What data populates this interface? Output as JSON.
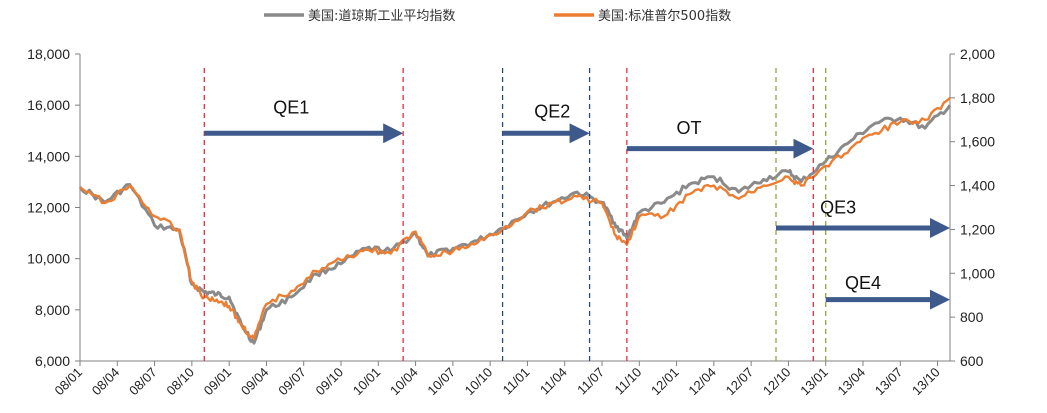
{
  "chart_data": {
    "type": "line",
    "legend": {
      "placement": "top-center"
    },
    "grid": false,
    "x_axis": {
      "ticks": [
        "08/01",
        "08/04",
        "08/07",
        "08/10",
        "09/01",
        "09/04",
        "09/07",
        "09/10",
        "10/01",
        "10/04",
        "10/07",
        "10/10",
        "11/01",
        "11/04",
        "11/07",
        "11/10",
        "12/01",
        "12/04",
        "12/07",
        "12/10",
        "13/01",
        "13/04",
        "13/07",
        "13/10"
      ],
      "range": [
        "2008-01",
        "2013-11"
      ]
    },
    "y_left": {
      "range": [
        6000,
        18000
      ],
      "ticks": [
        "6,000",
        "8,000",
        "10,000",
        "12,000",
        "14,000",
        "16,000",
        "18,000"
      ],
      "tick_values": [
        6000,
        8000,
        10000,
        12000,
        14000,
        16000,
        18000
      ]
    },
    "y_right": {
      "range": [
        600,
        2000
      ],
      "ticks": [
        "600",
        "800",
        "1,000",
        "1,200",
        "1,400",
        "1,600",
        "1,800",
        "2,000"
      ],
      "tick_values": [
        600,
        800,
        1000,
        1200,
        1400,
        1600,
        1800,
        2000
      ]
    },
    "series": [
      {
        "name": "美国:道琼斯工业平均指数",
        "axis": "left",
        "color": "#8a8a8a",
        "x": [
          "2008-01",
          "2008-03",
          "2008-05",
          "2008-07",
          "2008-09",
          "2008-10",
          "2008-11",
          "2008-12",
          "2009-01",
          "2009-02",
          "2009-03",
          "2009-04",
          "2009-06",
          "2009-08",
          "2009-10",
          "2009-12",
          "2010-02",
          "2010-04",
          "2010-05",
          "2010-07",
          "2010-09",
          "2010-11",
          "2011-01",
          "2011-03",
          "2011-05",
          "2011-07",
          "2011-08",
          "2011-09",
          "2011-10",
          "2011-12",
          "2012-02",
          "2012-04",
          "2012-06",
          "2012-08",
          "2012-10",
          "2012-11",
          "2013-01",
          "2013-03",
          "2013-05",
          "2013-07",
          "2013-09",
          "2013-11"
        ],
        "values": [
          12800,
          12200,
          12900,
          11300,
          11100,
          9000,
          8700,
          8600,
          8500,
          7400,
          6700,
          8000,
          8500,
          9400,
          9800,
          10400,
          10300,
          11000,
          10100,
          10400,
          10700,
          11200,
          11800,
          12200,
          12600,
          12200,
          11400,
          10800,
          11800,
          12200,
          12900,
          13200,
          12600,
          13100,
          13400,
          13000,
          13800,
          14600,
          15300,
          15500,
          15100,
          16000
        ]
      },
      {
        "name": "美国:标准普尔500指数",
        "axis": "right",
        "color": "#ed7d31",
        "x": [
          "2008-01",
          "2008-03",
          "2008-05",
          "2008-07",
          "2008-09",
          "2008-10",
          "2008-11",
          "2008-12",
          "2009-01",
          "2009-02",
          "2009-03",
          "2009-04",
          "2009-06",
          "2009-08",
          "2009-10",
          "2009-12",
          "2010-02",
          "2010-04",
          "2010-05",
          "2010-07",
          "2010-09",
          "2010-11",
          "2011-01",
          "2011-03",
          "2011-05",
          "2011-07",
          "2011-08",
          "2011-09",
          "2011-10",
          "2011-12",
          "2012-02",
          "2012-04",
          "2012-06",
          "2012-08",
          "2012-10",
          "2012-11",
          "2013-01",
          "2013-03",
          "2013-05",
          "2013-07",
          "2013-09",
          "2013-11"
        ],
        "values": [
          1390,
          1320,
          1400,
          1260,
          1200,
          960,
          890,
          880,
          850,
          760,
          700,
          860,
          920,
          1010,
          1060,
          1110,
          1090,
          1190,
          1080,
          1100,
          1140,
          1200,
          1280,
          1320,
          1350,
          1320,
          1180,
          1130,
          1260,
          1260,
          1360,
          1400,
          1340,
          1400,
          1440,
          1400,
          1490,
          1570,
          1640,
          1690,
          1700,
          1800
        ]
      }
    ],
    "annotations": [
      {
        "label": "QE1",
        "start": "2008-11",
        "end": "2010-03",
        "arrow_level": 14900,
        "label_level": 15900,
        "label_at": "2009-06"
      },
      {
        "label": "QE2",
        "start": "2010-11",
        "end": "2011-06",
        "arrow_level": 14900,
        "label_level": 15750,
        "label_at": "2011-03"
      },
      {
        "label": "OT",
        "start": "2011-09",
        "end": "2012-12",
        "arrow_level": 14300,
        "label_level": 15100,
        "label_at": "2012-02"
      },
      {
        "label": "QE3",
        "start": "2012-09",
        "end": "2013-11",
        "arrow_level": 11200,
        "label_level": 12000,
        "label_at": "2013-02"
      },
      {
        "label": "QE4",
        "start": "2013-01",
        "end": "2013-11",
        "arrow_level": 8400,
        "label_level": 9050,
        "label_at": "2013-04"
      }
    ],
    "vlines": [
      {
        "at": "2008-11",
        "color": "#e0303a"
      },
      {
        "at": "2010-03",
        "color": "#e0303a"
      },
      {
        "at": "2010-11",
        "color": "#2c4a7a"
      },
      {
        "at": "2011-06",
        "color": "#2c4a7a"
      },
      {
        "at": "2011-09",
        "color": "#e0303a"
      },
      {
        "at": "2012-09",
        "color": "#8aa842"
      },
      {
        "at": "2012-12",
        "color": "#e0303a"
      },
      {
        "at": "2013-01",
        "color": "#8aa842"
      }
    ]
  }
}
